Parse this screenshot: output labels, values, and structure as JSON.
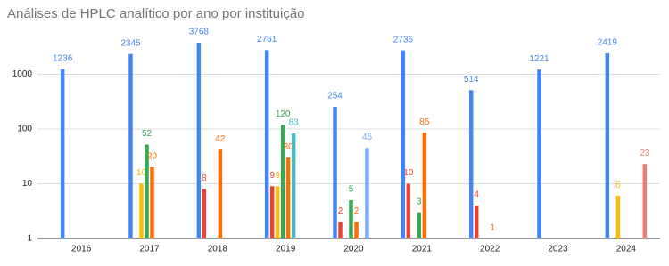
{
  "chart_data": {
    "type": "bar",
    "title": "Análises de HPLC analítico por ano por instituição",
    "categories": [
      "2016",
      "2017",
      "2018",
      "2019",
      "2020",
      "2021",
      "2022",
      "2023",
      "2024"
    ],
    "log_scale": true,
    "ylim": [
      1,
      10000
    ],
    "yticks": [
      1,
      10,
      100,
      1000
    ],
    "grid": true,
    "series": [
      {
        "color": "#4285f4",
        "values": [
          1236,
          2345,
          3768,
          2761,
          254,
          2736,
          514,
          1221,
          2419
        ]
      },
      {
        "color": "#ea4335",
        "values": [
          null,
          null,
          8,
          9,
          2,
          10,
          4,
          null,
          null
        ]
      },
      {
        "color": "#fbbc04",
        "values": [
          null,
          10,
          null,
          9,
          null,
          null,
          null,
          null,
          6
        ]
      },
      {
        "color": "#34a853",
        "values": [
          null,
          52,
          null,
          120,
          5,
          3,
          null,
          null,
          null
        ]
      },
      {
        "color": "#ff6d01",
        "values": [
          null,
          20,
          42,
          30,
          2,
          85,
          1,
          null,
          null
        ]
      },
      {
        "color": "#46bdc6",
        "values": [
          null,
          null,
          null,
          83,
          null,
          null,
          null,
          null,
          null
        ]
      },
      {
        "color": "#7baaf7",
        "values": [
          null,
          null,
          null,
          null,
          45,
          null,
          null,
          null,
          null
        ]
      },
      {
        "color": "#f07b72",
        "values": [
          null,
          null,
          null,
          null,
          null,
          null,
          null,
          null,
          23
        ]
      }
    ]
  }
}
